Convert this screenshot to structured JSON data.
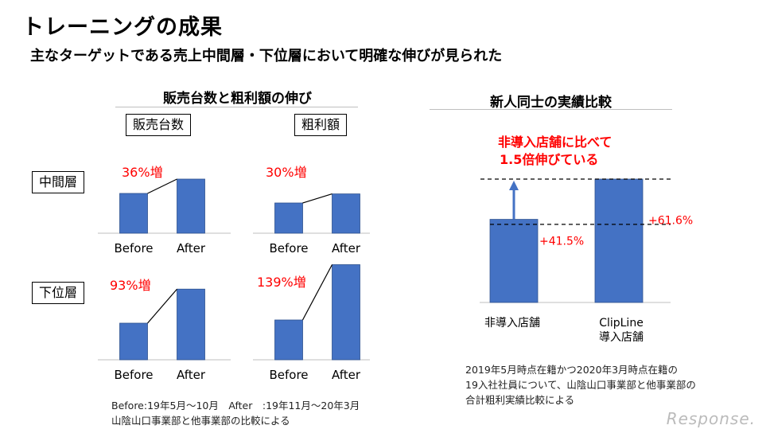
{
  "header": {
    "title": "トレーニングの成果",
    "subtitle": "主なターゲットである売上中間層・下位層において明確な伸びが見られた"
  },
  "left_section": {
    "title": "販売台数と粗利額の伸び",
    "col_labels": [
      "販売台数",
      "粗利額"
    ],
    "row_labels": [
      "中間層",
      "下位層"
    ],
    "footnote_lines": [
      "Before:19年5月～10月　After　:19年11月～20年3月",
      "山陰山口事業部と他事業部の比較による"
    ]
  },
  "right_section": {
    "title": "新人同士の実績比較",
    "callout_lines": [
      "非導入店舗に比べて",
      "1.5倍伸びている"
    ],
    "footnote_lines": [
      "2019年5月時点在籍かつ2020年3月時点在籍の",
      "19入社社員について、山陰山口事業部と他事業部の",
      "合計粗利実績比較による"
    ]
  },
  "colors": {
    "bar": "#4472c4",
    "bar_edge": "#2f528f",
    "accent_red": "#ff0000",
    "axis": "#bfbfbf"
  },
  "watermark": "Response.",
  "chart_data": [
    {
      "type": "bar",
      "title": "",
      "categories": [
        "Before",
        "After"
      ],
      "values": [
        100,
        136
      ],
      "annotation": "36%増",
      "segment": "中間層",
      "metric": "販売台数"
    },
    {
      "type": "bar",
      "title": "",
      "categories": [
        "Before",
        "After"
      ],
      "values": [
        100,
        130
      ],
      "annotation": "30%増",
      "segment": "中間層",
      "metric": "粗利額"
    },
    {
      "type": "bar",
      "title": "",
      "categories": [
        "Before",
        "After"
      ],
      "values": [
        100,
        193
      ],
      "annotation": "93%増",
      "segment": "下位層",
      "metric": "販売台数"
    },
    {
      "type": "bar",
      "title": "",
      "categories": [
        "Before",
        "After"
      ],
      "values": [
        100,
        239
      ],
      "annotation": "139%増",
      "segment": "下位層",
      "metric": "粗利額"
    },
    {
      "type": "bar",
      "title": "新人同士の実績比較",
      "categories": [
        "非導入店舗",
        "ClipLine\n導入店舗"
      ],
      "category_lines": [
        [
          "非導入店舗"
        ],
        [
          "ClipLine",
          "導入店舗"
        ]
      ],
      "values": [
        41.5,
        61.6
      ],
      "data_labels": [
        "+41.5%",
        "+61.6%"
      ],
      "unit": "%"
    }
  ]
}
